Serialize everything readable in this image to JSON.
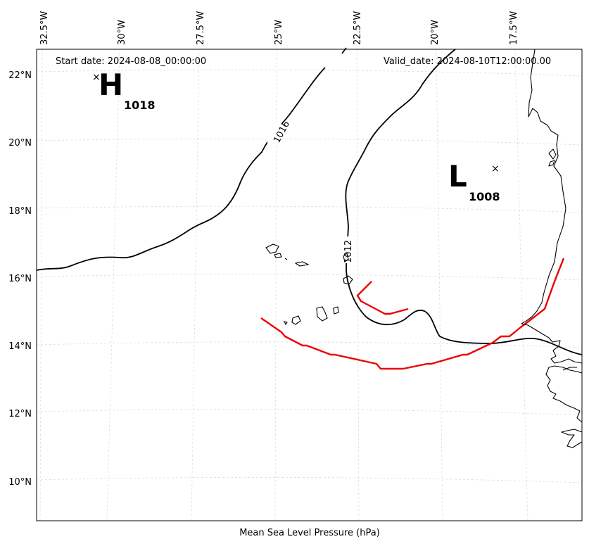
{
  "header": {
    "start_date": "Start date: 2024-08-08_00:00:00",
    "valid_date": "Valid_date: 2024-08-10T12:00:00.00"
  },
  "footer": {
    "xlabel": "Mean Sea Level Pressure (hPa)"
  },
  "axes": {
    "lon_ticks": [
      "32.5°W",
      "30°W",
      "27.5°W",
      "25°W",
      "22.5°W",
      "20°W",
      "17.5°W"
    ],
    "lat_ticks": [
      "22°N",
      "20°N",
      "18°N",
      "16°N",
      "14°N",
      "12°N",
      "10°N"
    ]
  },
  "pressure_centers": {
    "high": {
      "symbol": "H",
      "value": "1018"
    },
    "low": {
      "symbol": "L",
      "value": "1008"
    }
  },
  "isobars": {
    "labels": [
      "1016",
      "1012"
    ],
    "line_color": "#000000"
  },
  "trough": {
    "color": "#ee0000"
  },
  "grid": {
    "visible": true,
    "style": "dashed",
    "color": "#d9d9d9"
  }
}
